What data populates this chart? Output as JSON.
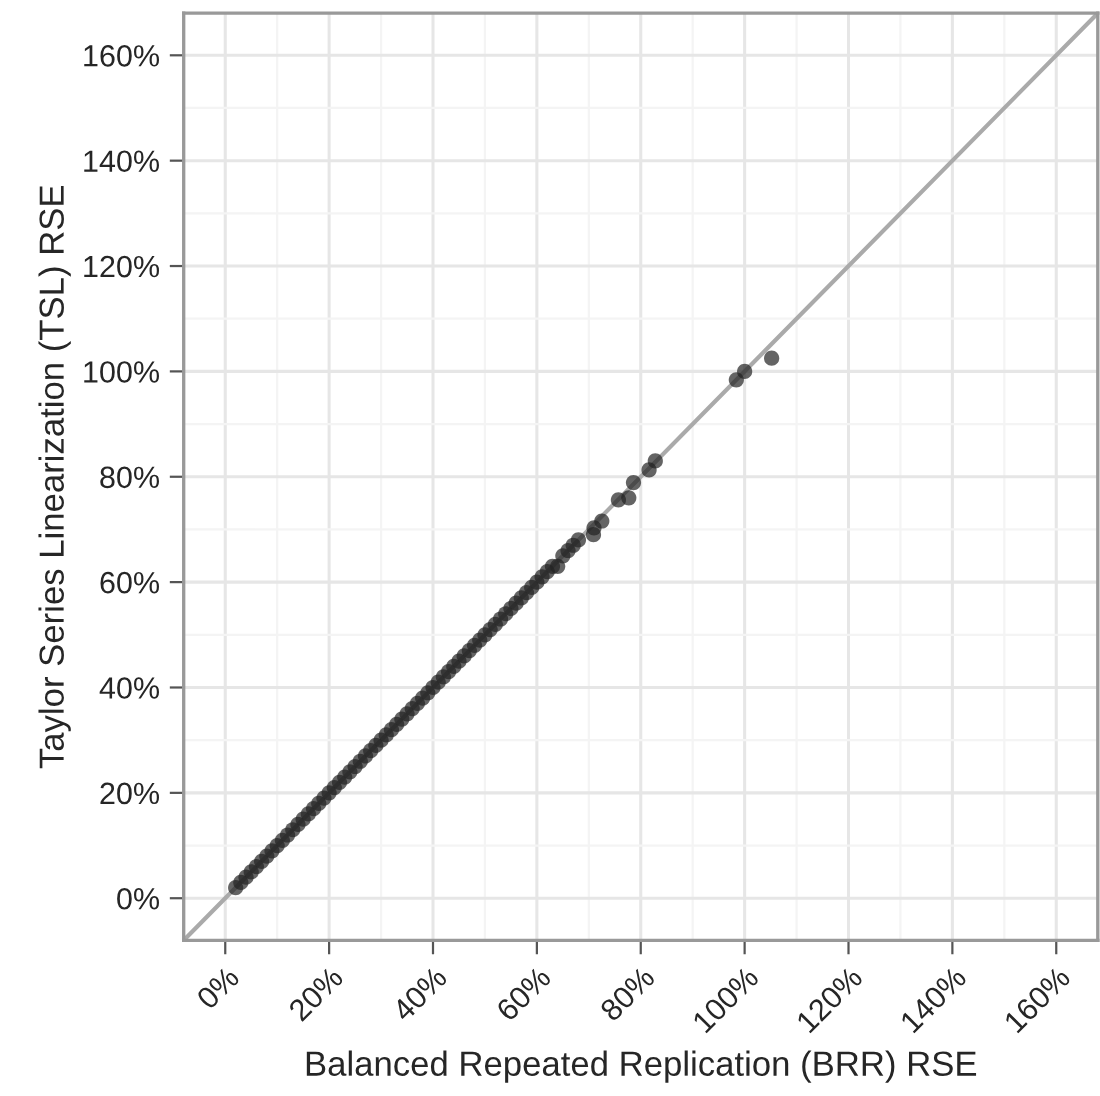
{
  "chart_data": {
    "type": "scatter",
    "xlabel": "Balanced Repeated Replication (BRR) RSE",
    "ylabel": "Taylor Series Linearization (TSL) RSE",
    "xlim": [
      -8,
      168
    ],
    "ylim": [
      -8,
      168
    ],
    "xticks": [
      {
        "value": 0,
        "label": "0%"
      },
      {
        "value": 20,
        "label": "20%"
      },
      {
        "value": 40,
        "label": "40%"
      },
      {
        "value": 60,
        "label": "60%"
      },
      {
        "value": 80,
        "label": "80%"
      },
      {
        "value": 100,
        "label": "100%"
      },
      {
        "value": 120,
        "label": "120%"
      },
      {
        "value": 140,
        "label": "140%"
      },
      {
        "value": 160,
        "label": "160%"
      }
    ],
    "yticks": [
      {
        "value": 0,
        "label": "0%"
      },
      {
        "value": 20,
        "label": "20%"
      },
      {
        "value": 40,
        "label": "40%"
      },
      {
        "value": 60,
        "label": "60%"
      },
      {
        "value": 80,
        "label": "80%"
      },
      {
        "value": 100,
        "label": "100%"
      },
      {
        "value": 120,
        "label": "120%"
      },
      {
        "value": 140,
        "label": "140%"
      },
      {
        "value": 160,
        "label": "160%"
      }
    ],
    "grid": true,
    "series": [
      {
        "type": "line",
        "marker": "none",
        "color": "#aaaaaa",
        "x": [
          -8,
          168
        ],
        "values": [
          -8,
          168
        ]
      },
      {
        "marker": "circle",
        "color": "#222222",
        "x": [
          2,
          3,
          4,
          5,
          6,
          7,
          8,
          9,
          10,
          11,
          12,
          13,
          14,
          15,
          16,
          17,
          18,
          19,
          20,
          21,
          22,
          23,
          24,
          25,
          26,
          27,
          28,
          29,
          30,
          31,
          32,
          33,
          34,
          35,
          36,
          37,
          38,
          39,
          40,
          41,
          42,
          43,
          44,
          45,
          46,
          47,
          48,
          49,
          50,
          51,
          52,
          53,
          54,
          55,
          56,
          57,
          58,
          59,
          60,
          61,
          62,
          63,
          64,
          65,
          66,
          67,
          68,
          70.9,
          71,
          72.5,
          75.7,
          77.7,
          78.6,
          81.6,
          82.8,
          98.4,
          100,
          105.2
        ],
        "values": [
          2,
          3,
          4,
          5,
          6,
          7,
          8,
          9,
          10,
          11,
          12,
          13,
          14,
          15,
          16,
          17,
          18,
          19,
          20,
          21,
          22,
          23,
          24,
          25,
          26,
          27,
          28,
          29,
          30,
          31,
          32,
          33,
          34,
          35,
          36,
          37,
          38,
          39,
          40,
          41,
          42,
          43,
          44,
          45,
          46,
          47,
          48,
          49,
          50,
          51,
          52,
          53,
          54,
          55,
          56,
          57,
          58,
          59,
          60,
          61,
          62,
          63,
          63,
          65,
          66,
          67,
          68,
          69,
          70.3,
          71.6,
          75.6,
          76,
          78.9,
          81.3,
          83,
          98.4,
          100,
          102.5
        ]
      }
    ]
  }
}
